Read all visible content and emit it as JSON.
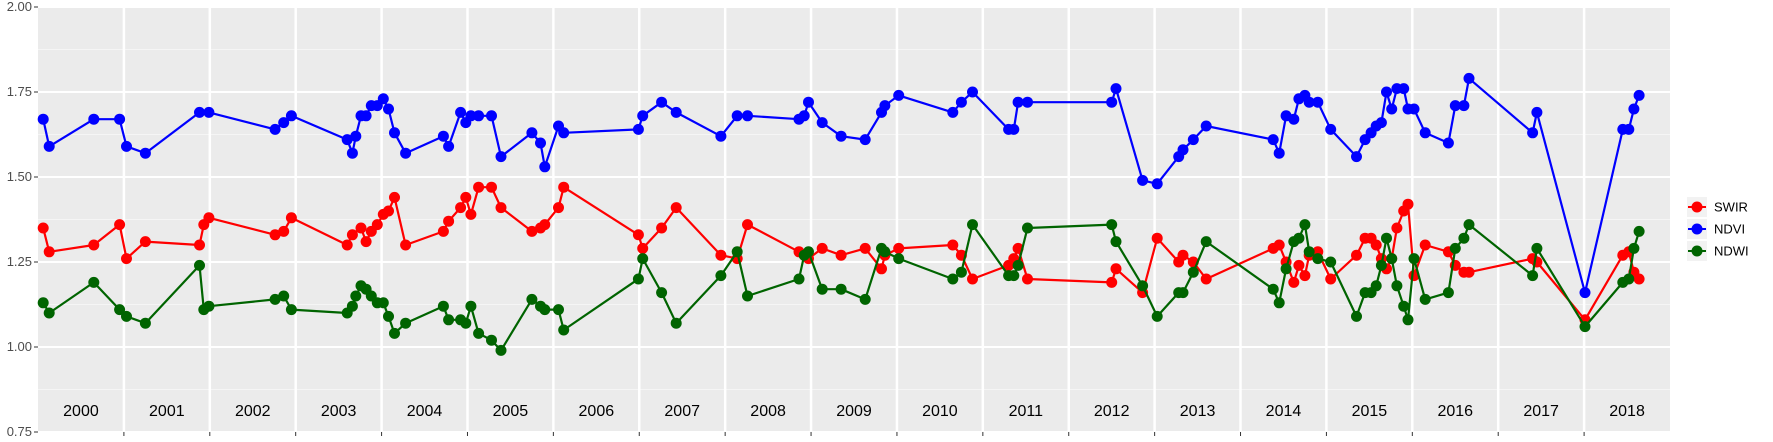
{
  "chart_data": {
    "type": "line",
    "title": "",
    "xlabel": "",
    "ylabel": "",
    "ylim": [
      0.75,
      2.0
    ],
    "yticks": [
      "0.75",
      "1.00",
      "1.25",
      "1.50",
      "1.75",
      "2.00"
    ],
    "xlim": [
      2000.0,
      2019.0
    ],
    "year_labels": [
      "2000",
      "2001",
      "2002",
      "2003",
      "2004",
      "2005",
      "2006",
      "2007",
      "2008",
      "2009",
      "2010",
      "2011",
      "2012",
      "2013",
      "2014",
      "2015",
      "2016",
      "2017",
      "2018"
    ],
    "grid": true,
    "legend_position": "right",
    "series": [
      {
        "name": "SWIR",
        "color": "#ff0000",
        "points": [
          [
            2000.06,
            1.35
          ],
          [
            2000.13,
            1.28
          ],
          [
            2000.65,
            1.3
          ],
          [
            2000.95,
            1.36
          ],
          [
            2001.03,
            1.26
          ],
          [
            2001.25,
            1.31
          ],
          [
            2001.88,
            1.3
          ],
          [
            2001.93,
            1.36
          ],
          [
            2001.99,
            1.38
          ],
          [
            2002.76,
            1.33
          ],
          [
            2002.86,
            1.34
          ],
          [
            2002.95,
            1.38
          ],
          [
            2003.6,
            1.3
          ],
          [
            2003.66,
            1.33
          ],
          [
            2003.76,
            1.35
          ],
          [
            2003.82,
            1.31
          ],
          [
            2003.88,
            1.34
          ],
          [
            2003.95,
            1.36
          ],
          [
            2004.02,
            1.39
          ],
          [
            2004.08,
            1.4
          ],
          [
            2004.15,
            1.44
          ],
          [
            2004.28,
            1.3
          ],
          [
            2004.72,
            1.34
          ],
          [
            2004.78,
            1.37
          ],
          [
            2004.92,
            1.41
          ],
          [
            2004.98,
            1.44
          ],
          [
            2005.04,
            1.39
          ],
          [
            2005.13,
            1.47
          ],
          [
            2005.28,
            1.47
          ],
          [
            2005.39,
            1.41
          ],
          [
            2005.75,
            1.34
          ],
          [
            2005.85,
            1.35
          ],
          [
            2005.9,
            1.36
          ],
          [
            2006.06,
            1.41
          ],
          [
            2006.12,
            1.47
          ],
          [
            2006.99,
            1.33
          ],
          [
            2007.04,
            1.29
          ],
          [
            2007.26,
            1.35
          ],
          [
            2007.43,
            1.41
          ],
          [
            2007.95,
            1.27
          ],
          [
            2008.14,
            1.26
          ],
          [
            2008.26,
            1.36
          ],
          [
            2008.86,
            1.28
          ],
          [
            2008.92,
            1.27
          ],
          [
            2008.97,
            1.26
          ],
          [
            2009.13,
            1.29
          ],
          [
            2009.35,
            1.27
          ],
          [
            2009.63,
            1.29
          ],
          [
            2009.82,
            1.23
          ],
          [
            2009.86,
            1.27
          ],
          [
            2010.02,
            1.29
          ],
          [
            2010.65,
            1.3
          ],
          [
            2010.75,
            1.27
          ],
          [
            2010.88,
            1.2
          ],
          [
            2011.3,
            1.24
          ],
          [
            2011.36,
            1.26
          ],
          [
            2011.41,
            1.29
          ],
          [
            2011.52,
            1.2
          ],
          [
            2012.5,
            1.19
          ],
          [
            2012.55,
            1.23
          ],
          [
            2012.86,
            1.16
          ],
          [
            2013.03,
            1.32
          ],
          [
            2013.28,
            1.25
          ],
          [
            2013.33,
            1.27
          ],
          [
            2013.45,
            1.25
          ],
          [
            2013.6,
            1.2
          ],
          [
            2014.38,
            1.29
          ],
          [
            2014.45,
            1.3
          ],
          [
            2014.53,
            1.25
          ],
          [
            2014.62,
            1.19
          ],
          [
            2014.68,
            1.24
          ],
          [
            2014.75,
            1.21
          ],
          [
            2014.8,
            1.27
          ],
          [
            2014.9,
            1.28
          ],
          [
            2015.05,
            1.2
          ],
          [
            2015.35,
            1.27
          ],
          [
            2015.45,
            1.32
          ],
          [
            2015.52,
            1.32
          ],
          [
            2015.58,
            1.3
          ],
          [
            2015.64,
            1.26
          ],
          [
            2015.7,
            1.23
          ],
          [
            2015.76,
            1.26
          ],
          [
            2015.82,
            1.35
          ],
          [
            2015.9,
            1.4
          ],
          [
            2015.95,
            1.42
          ],
          [
            2016.02,
            1.21
          ],
          [
            2016.15,
            1.3
          ],
          [
            2016.42,
            1.28
          ],
          [
            2016.5,
            1.24
          ],
          [
            2016.6,
            1.22
          ],
          [
            2016.66,
            1.22
          ],
          [
            2017.4,
            1.26
          ],
          [
            2017.45,
            1.25
          ],
          [
            2018.01,
            1.08
          ],
          [
            2018.45,
            1.27
          ],
          [
            2018.52,
            1.28
          ],
          [
            2018.58,
            1.22
          ],
          [
            2018.64,
            1.2
          ]
        ]
      },
      {
        "name": "NDVI",
        "color": "#0000ff",
        "points": [
          [
            2000.06,
            1.67
          ],
          [
            2000.13,
            1.59
          ],
          [
            2000.65,
            1.67
          ],
          [
            2000.95,
            1.67
          ],
          [
            2001.03,
            1.59
          ],
          [
            2001.25,
            1.57
          ],
          [
            2001.88,
            1.69
          ],
          [
            2001.99,
            1.69
          ],
          [
            2002.76,
            1.64
          ],
          [
            2002.86,
            1.66
          ],
          [
            2002.95,
            1.68
          ],
          [
            2003.6,
            1.61
          ],
          [
            2003.66,
            1.57
          ],
          [
            2003.7,
            1.62
          ],
          [
            2003.76,
            1.68
          ],
          [
            2003.82,
            1.68
          ],
          [
            2003.88,
            1.71
          ],
          [
            2003.95,
            1.71
          ],
          [
            2004.02,
            1.73
          ],
          [
            2004.08,
            1.7
          ],
          [
            2004.15,
            1.63
          ],
          [
            2004.28,
            1.57
          ],
          [
            2004.72,
            1.62
          ],
          [
            2004.78,
            1.59
          ],
          [
            2004.92,
            1.69
          ],
          [
            2004.98,
            1.66
          ],
          [
            2005.04,
            1.68
          ],
          [
            2005.13,
            1.68
          ],
          [
            2005.28,
            1.68
          ],
          [
            2005.39,
            1.56
          ],
          [
            2005.75,
            1.63
          ],
          [
            2005.85,
            1.6
          ],
          [
            2005.9,
            1.53
          ],
          [
            2006.06,
            1.65
          ],
          [
            2006.12,
            1.63
          ],
          [
            2006.99,
            1.64
          ],
          [
            2007.04,
            1.68
          ],
          [
            2007.26,
            1.72
          ],
          [
            2007.43,
            1.69
          ],
          [
            2007.95,
            1.62
          ],
          [
            2008.14,
            1.68
          ],
          [
            2008.26,
            1.68
          ],
          [
            2008.86,
            1.67
          ],
          [
            2008.92,
            1.68
          ],
          [
            2008.97,
            1.72
          ],
          [
            2009.13,
            1.66
          ],
          [
            2009.35,
            1.62
          ],
          [
            2009.63,
            1.61
          ],
          [
            2009.82,
            1.69
          ],
          [
            2009.86,
            1.71
          ],
          [
            2010.02,
            1.74
          ],
          [
            2010.65,
            1.69
          ],
          [
            2010.75,
            1.72
          ],
          [
            2010.88,
            1.75
          ],
          [
            2011.3,
            1.64
          ],
          [
            2011.36,
            1.64
          ],
          [
            2011.41,
            1.72
          ],
          [
            2011.52,
            1.72
          ],
          [
            2012.5,
            1.72
          ],
          [
            2012.55,
            1.76
          ],
          [
            2012.86,
            1.49
          ],
          [
            2013.03,
            1.48
          ],
          [
            2013.28,
            1.56
          ],
          [
            2013.33,
            1.58
          ],
          [
            2013.45,
            1.61
          ],
          [
            2013.6,
            1.65
          ],
          [
            2014.38,
            1.61
          ],
          [
            2014.45,
            1.57
          ],
          [
            2014.53,
            1.68
          ],
          [
            2014.62,
            1.67
          ],
          [
            2014.68,
            1.73
          ],
          [
            2014.75,
            1.74
          ],
          [
            2014.8,
            1.72
          ],
          [
            2014.9,
            1.72
          ],
          [
            2015.05,
            1.64
          ],
          [
            2015.35,
            1.56
          ],
          [
            2015.45,
            1.61
          ],
          [
            2015.52,
            1.63
          ],
          [
            2015.58,
            1.65
          ],
          [
            2015.64,
            1.66
          ],
          [
            2015.7,
            1.75
          ],
          [
            2015.76,
            1.7
          ],
          [
            2015.82,
            1.76
          ],
          [
            2015.9,
            1.76
          ],
          [
            2015.95,
            1.7
          ],
          [
            2016.02,
            1.7
          ],
          [
            2016.15,
            1.63
          ],
          [
            2016.42,
            1.6
          ],
          [
            2016.5,
            1.71
          ],
          [
            2016.6,
            1.71
          ],
          [
            2016.66,
            1.79
          ],
          [
            2017.4,
            1.63
          ],
          [
            2017.45,
            1.69
          ],
          [
            2018.01,
            1.16
          ],
          [
            2018.45,
            1.64
          ],
          [
            2018.52,
            1.64
          ],
          [
            2018.58,
            1.7
          ],
          [
            2018.64,
            1.74
          ]
        ]
      },
      {
        "name": "NDWI",
        "color": "#006400",
        "points": [
          [
            2000.06,
            1.13
          ],
          [
            2000.13,
            1.1
          ],
          [
            2000.65,
            1.19
          ],
          [
            2000.95,
            1.11
          ],
          [
            2001.03,
            1.09
          ],
          [
            2001.25,
            1.07
          ],
          [
            2001.88,
            1.24
          ],
          [
            2001.93,
            1.11
          ],
          [
            2001.99,
            1.12
          ],
          [
            2002.76,
            1.14
          ],
          [
            2002.86,
            1.15
          ],
          [
            2002.95,
            1.11
          ],
          [
            2003.6,
            1.1
          ],
          [
            2003.66,
            1.12
          ],
          [
            2003.7,
            1.15
          ],
          [
            2003.76,
            1.18
          ],
          [
            2003.82,
            1.17
          ],
          [
            2003.88,
            1.15
          ],
          [
            2003.95,
            1.13
          ],
          [
            2004.02,
            1.13
          ],
          [
            2004.08,
            1.09
          ],
          [
            2004.15,
            1.04
          ],
          [
            2004.28,
            1.07
          ],
          [
            2004.72,
            1.12
          ],
          [
            2004.78,
            1.08
          ],
          [
            2004.92,
            1.08
          ],
          [
            2004.98,
            1.07
          ],
          [
            2005.04,
            1.12
          ],
          [
            2005.13,
            1.04
          ],
          [
            2005.28,
            1.02
          ],
          [
            2005.39,
            0.99
          ],
          [
            2005.75,
            1.14
          ],
          [
            2005.85,
            1.12
          ],
          [
            2005.9,
            1.11
          ],
          [
            2006.06,
            1.11
          ],
          [
            2006.12,
            1.05
          ],
          [
            2006.99,
            1.2
          ],
          [
            2007.04,
            1.26
          ],
          [
            2007.26,
            1.16
          ],
          [
            2007.43,
            1.07
          ],
          [
            2007.95,
            1.21
          ],
          [
            2008.14,
            1.28
          ],
          [
            2008.26,
            1.15
          ],
          [
            2008.86,
            1.2
          ],
          [
            2008.92,
            1.27
          ],
          [
            2008.97,
            1.28
          ],
          [
            2009.13,
            1.17
          ],
          [
            2009.35,
            1.17
          ],
          [
            2009.63,
            1.14
          ],
          [
            2009.82,
            1.29
          ],
          [
            2009.86,
            1.28
          ],
          [
            2010.02,
            1.26
          ],
          [
            2010.65,
            1.2
          ],
          [
            2010.75,
            1.22
          ],
          [
            2010.88,
            1.36
          ],
          [
            2011.3,
            1.21
          ],
          [
            2011.36,
            1.21
          ],
          [
            2011.41,
            1.24
          ],
          [
            2011.52,
            1.35
          ],
          [
            2012.5,
            1.36
          ],
          [
            2012.55,
            1.31
          ],
          [
            2012.86,
            1.18
          ],
          [
            2013.03,
            1.09
          ],
          [
            2013.28,
            1.16
          ],
          [
            2013.33,
            1.16
          ],
          [
            2013.45,
            1.22
          ],
          [
            2013.6,
            1.31
          ],
          [
            2014.38,
            1.17
          ],
          [
            2014.45,
            1.13
          ],
          [
            2014.53,
            1.23
          ],
          [
            2014.62,
            1.31
          ],
          [
            2014.68,
            1.32
          ],
          [
            2014.75,
            1.36
          ],
          [
            2014.8,
            1.28
          ],
          [
            2014.9,
            1.26
          ],
          [
            2015.05,
            1.25
          ],
          [
            2015.35,
            1.09
          ],
          [
            2015.45,
            1.16
          ],
          [
            2015.52,
            1.16
          ],
          [
            2015.58,
            1.18
          ],
          [
            2015.64,
            1.24
          ],
          [
            2015.7,
            1.32
          ],
          [
            2015.76,
            1.26
          ],
          [
            2015.82,
            1.18
          ],
          [
            2015.9,
            1.12
          ],
          [
            2015.95,
            1.08
          ],
          [
            2016.02,
            1.26
          ],
          [
            2016.15,
            1.14
          ],
          [
            2016.42,
            1.16
          ],
          [
            2016.5,
            1.29
          ],
          [
            2016.6,
            1.32
          ],
          [
            2016.66,
            1.36
          ],
          [
            2017.4,
            1.21
          ],
          [
            2017.45,
            1.29
          ],
          [
            2018.01,
            1.06
          ],
          [
            2018.45,
            1.19
          ],
          [
            2018.52,
            1.2
          ],
          [
            2018.58,
            1.29
          ],
          [
            2018.64,
            1.34
          ]
        ]
      }
    ]
  }
}
